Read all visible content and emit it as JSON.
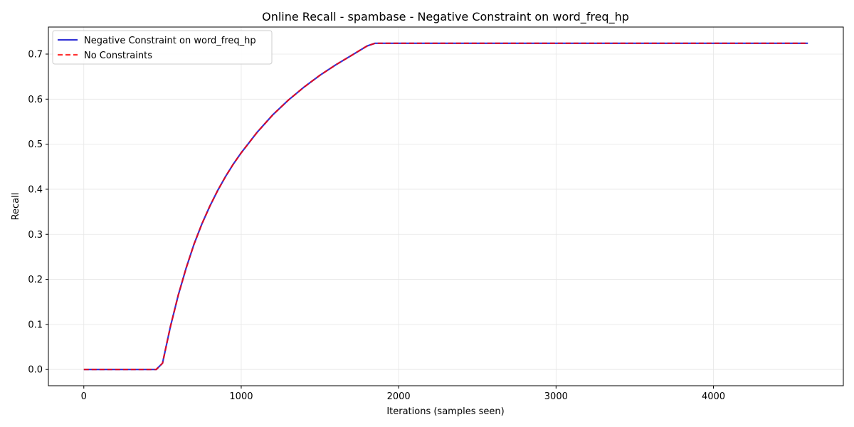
{
  "chart_data": {
    "type": "line",
    "title": "Online Recall - spambase - Negative Constraint on word_freq_hp",
    "xlabel": "Iterations (samples seen)",
    "ylabel": "Recall",
    "xlim": [
      -225,
      4825
    ],
    "ylim": [
      -0.036,
      0.76
    ],
    "xticks": [
      0,
      1000,
      2000,
      3000,
      4000
    ],
    "yticks": [
      0.0,
      0.1,
      0.2,
      0.3,
      0.4,
      0.5,
      0.6,
      0.7
    ],
    "xtick_labels": [
      "0",
      "1000",
      "2000",
      "3000",
      "4000"
    ],
    "ytick_labels": [
      "0.0",
      "0.1",
      "0.2",
      "0.3",
      "0.4",
      "0.5",
      "0.6",
      "0.7"
    ],
    "grid": true,
    "legend_position": "top-left",
    "legend": [
      "Negative Constraint on word_freq_hp",
      "No Constraints"
    ],
    "series": [
      {
        "name": "Negative Constraint on word_freq_hp",
        "color": "#0000cc",
        "style": "solid",
        "x": [
          0,
          100,
          200,
          300,
          400,
          460,
          500,
          550,
          600,
          650,
          700,
          750,
          800,
          850,
          900,
          950,
          1000,
          1100,
          1200,
          1300,
          1400,
          1500,
          1600,
          1700,
          1800,
          1850,
          2000,
          3000,
          4000,
          4600
        ],
        "y": [
          0.0,
          0.0,
          0.0,
          0.0,
          0.0,
          0.0,
          0.014,
          0.095,
          0.165,
          0.225,
          0.278,
          0.323,
          0.362,
          0.397,
          0.428,
          0.456,
          0.481,
          0.526,
          0.565,
          0.598,
          0.627,
          0.653,
          0.676,
          0.697,
          0.718,
          0.724,
          0.724,
          0.724,
          0.724,
          0.724
        ]
      },
      {
        "name": "No Constraints",
        "color": "#ff0000",
        "style": "dashed",
        "x": [
          0,
          100,
          200,
          300,
          400,
          460,
          500,
          550,
          600,
          650,
          700,
          750,
          800,
          850,
          900,
          950,
          1000,
          1100,
          1200,
          1300,
          1400,
          1500,
          1600,
          1700,
          1800,
          1850,
          2000,
          3000,
          4000,
          4600
        ],
        "y": [
          0.0,
          0.0,
          0.0,
          0.0,
          0.0,
          0.0,
          0.014,
          0.095,
          0.165,
          0.225,
          0.278,
          0.323,
          0.362,
          0.397,
          0.428,
          0.456,
          0.481,
          0.526,
          0.565,
          0.598,
          0.627,
          0.653,
          0.676,
          0.697,
          0.718,
          0.724,
          0.724,
          0.724,
          0.724,
          0.724
        ]
      }
    ]
  }
}
